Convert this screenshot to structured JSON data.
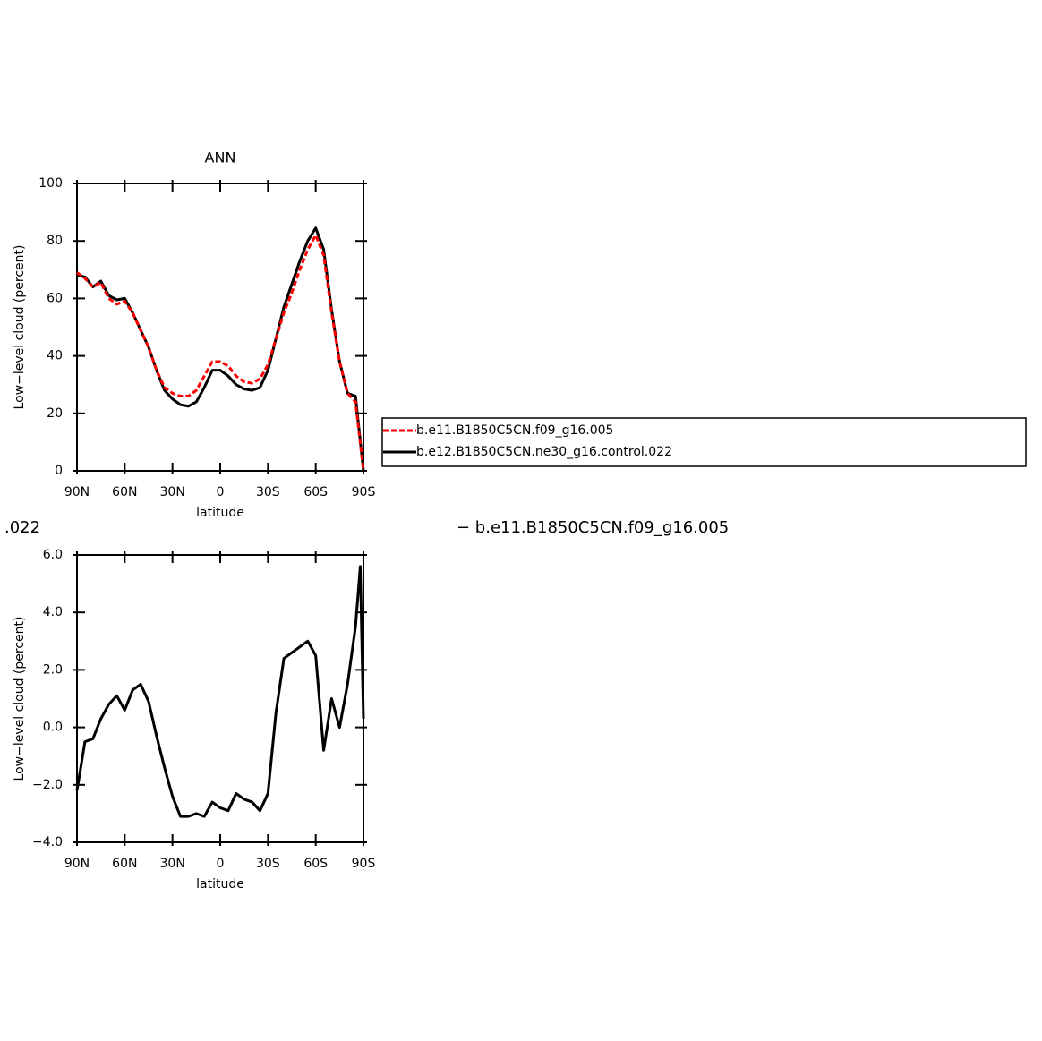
{
  "chart_data": [
    {
      "type": "line",
      "title": "ANN",
      "x_label": "latitude",
      "y_label": "Low−level cloud (percent)",
      "x": [
        90,
        85,
        80,
        75,
        70,
        65,
        60,
        55,
        50,
        45,
        40,
        35,
        30,
        25,
        20,
        15,
        10,
        5,
        0,
        -5,
        -10,
        -15,
        -20,
        -25,
        -30,
        -35,
        -40,
        -45,
        -50,
        -55,
        -60,
        -65,
        -70,
        -75,
        -80,
        -85,
        -90
      ],
      "series": [
        {
          "name": "b.e11.B1850C5CN.f09_g16.005",
          "color": "#ff0000",
          "dash": "dashed",
          "values": [
            69,
            67,
            64,
            65.5,
            60,
            58,
            59,
            55,
            49,
            43,
            35,
            29,
            27,
            26,
            26,
            28,
            33,
            38,
            38,
            36.5,
            33,
            31,
            30.5,
            32,
            37,
            46,
            55,
            62,
            70,
            77,
            82,
            75,
            55,
            38,
            27,
            24,
            0
          ]
        },
        {
          "name": "b.e12.B1850C5CN.ne30_g16.control.022",
          "color": "#000000",
          "dash": "solid",
          "values": [
            68,
            67.5,
            64,
            66,
            61,
            59.5,
            60,
            55,
            49,
            43,
            35,
            28,
            25,
            23,
            22.5,
            24,
            29,
            35,
            35,
            33,
            30,
            28.5,
            28,
            29,
            35,
            46,
            57,
            65,
            73,
            80,
            84.5,
            77,
            56,
            38,
            27,
            26,
            0
          ]
        }
      ],
      "xlim": [
        90,
        -90
      ],
      "xticks": [
        {
          "value": 90,
          "label": "90N"
        },
        {
          "value": 60,
          "label": "60N"
        },
        {
          "value": 30,
          "label": "30N"
        },
        0,
        {
          "value": -30,
          "label": "30S"
        },
        {
          "value": -60,
          "label": "60S"
        },
        {
          "value": -90,
          "label": "90S"
        }
      ],
      "ylim": [
        0,
        100
      ],
      "yticks": [
        0,
        20,
        40,
        60,
        80,
        100
      ],
      "legend": "right"
    },
    {
      "type": "line",
      "title_parts": [
        ".022",
        "− b.e11.B1850C5CN.f09_g16.005"
      ],
      "x_label": "latitude",
      "y_label": "Low−level cloud (percent)",
      "x": [
        90,
        85,
        80,
        75,
        70,
        65,
        60,
        55,
        50,
        45,
        40,
        35,
        30,
        25,
        20,
        15,
        10,
        5,
        0,
        -5,
        -10,
        -15,
        -20,
        -25,
        -30,
        -35,
        -40,
        -45,
        -50,
        -55,
        -60,
        -65,
        -70,
        -75,
        -80,
        -85,
        -88,
        -90
      ],
      "values": [
        -2.2,
        -0.5,
        -0.4,
        0.3,
        0.8,
        1.1,
        0.6,
        1.3,
        1.5,
        0.9,
        -0.3,
        -1.4,
        -2.4,
        -3.1,
        -3.1,
        -3.0,
        -3.1,
        -2.6,
        -2.8,
        -2.9,
        -2.3,
        -2.5,
        -2.6,
        -2.9,
        -2.3,
        0.5,
        2.4,
        2.6,
        2.8,
        3.0,
        2.5,
        -0.8,
        1.0,
        0.0,
        1.5,
        3.5,
        5.6,
        0.3
      ],
      "color": "#000000",
      "xlim": [
        90,
        -90
      ],
      "xticks": [
        {
          "value": 90,
          "label": "90N"
        },
        {
          "value": 60,
          "label": "60N"
        },
        {
          "value": 30,
          "label": "30N"
        },
        0,
        {
          "value": -30,
          "label": "30S"
        },
        {
          "value": -60,
          "label": "60S"
        },
        {
          "value": -90,
          "label": "90S"
        }
      ],
      "ylim": [
        -4,
        6
      ],
      "yticks": [
        {
          "value": -4,
          "label": "−4.0"
        },
        {
          "value": -2,
          "label": "−2.0"
        },
        {
          "value": 0,
          "label": "0.0"
        },
        {
          "value": 2,
          "label": "2.0"
        },
        {
          "value": 4,
          "label": "4.0"
        },
        {
          "value": 6,
          "label": "6.0"
        }
      ]
    }
  ]
}
